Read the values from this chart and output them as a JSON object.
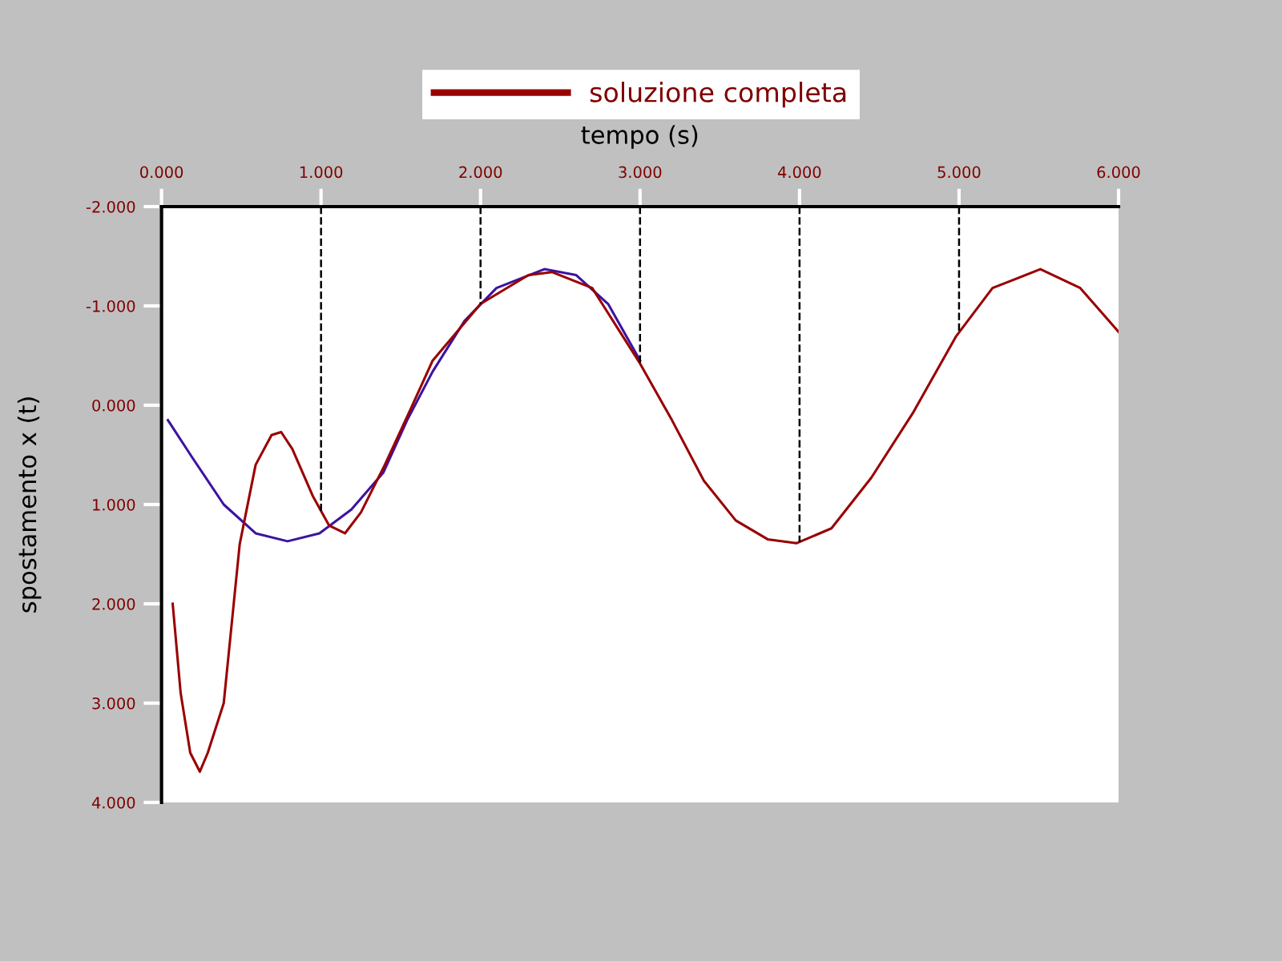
{
  "chart_data": {
    "type": "line",
    "xlabel": "tempo (s)",
    "ylabel": "spostamento x (t)",
    "legend": "top",
    "grid": false,
    "marker": "none",
    "line_style": "solid",
    "xlim": [
      0,
      6
    ],
    "ylim": [
      4,
      -2
    ],
    "xticks": [
      {
        "value": 0,
        "label": "0.000"
      },
      {
        "value": 1,
        "label": "1.000"
      },
      {
        "value": 2,
        "label": "2.000"
      },
      {
        "value": 3,
        "label": "3.000"
      },
      {
        "value": 4,
        "label": "4.000"
      },
      {
        "value": 5,
        "label": "5.000"
      },
      {
        "value": 6,
        "label": "6.000"
      }
    ],
    "yticks": [
      {
        "value": -2,
        "label": "-2.000"
      },
      {
        "value": -1,
        "label": "-1.000"
      },
      {
        "value": 0,
        "label": "0.000"
      },
      {
        "value": 1,
        "label": "1.000"
      },
      {
        "value": 2,
        "label": "2.000"
      },
      {
        "value": 3,
        "label": "3.000"
      },
      {
        "value": 4,
        "label": "4.000"
      }
    ],
    "series": [
      {
        "color": "#3c14a0",
        "x": [
          0.04,
          0.19,
          0.39,
          0.59,
          0.79,
          0.99,
          1.19,
          1.39,
          1.54,
          1.7,
          1.9,
          2.1,
          2.4,
          2.6,
          2.8,
          3.0
        ],
        "values": [
          0.15,
          0.52,
          1.0,
          1.29,
          1.37,
          1.29,
          1.05,
          0.68,
          0.15,
          -0.34,
          -0.85,
          -1.18,
          -1.37,
          -1.31,
          -1.02,
          -0.45
        ]
      },
      {
        "name": "soluzione completa",
        "color": "#990000",
        "x": [
          0.07,
          0.12,
          0.18,
          0.24,
          0.29,
          0.39,
          0.49,
          0.59,
          0.69,
          0.75,
          0.82,
          0.95,
          1.05,
          1.15,
          1.25,
          1.4,
          1.55,
          1.7,
          2.0,
          2.3,
          2.45,
          2.7,
          3.0,
          3.2,
          3.4,
          3.6,
          3.8,
          3.98,
          4.2,
          4.45,
          4.71,
          4.98,
          5.21,
          5.51,
          5.76,
          6.0
        ],
        "values": [
          2.0,
          2.9,
          3.5,
          3.69,
          3.5,
          3.0,
          1.4,
          0.6,
          0.3,
          0.27,
          0.44,
          0.92,
          1.21,
          1.29,
          1.08,
          0.6,
          0.08,
          -0.45,
          -1.02,
          -1.31,
          -1.34,
          -1.18,
          -0.42,
          0.15,
          0.76,
          1.16,
          1.35,
          1.39,
          1.24,
          0.73,
          0.08,
          -0.69,
          -1.18,
          -1.37,
          -1.18,
          -0.74
        ]
      }
    ],
    "ref_lines": [
      {
        "axis": "x",
        "value": 1,
        "color": "#000000",
        "line_style": "dashed"
      },
      {
        "axis": "x",
        "value": 2,
        "color": "#000000",
        "line_style": "dashed"
      },
      {
        "axis": "x",
        "value": 3,
        "color": "#000000",
        "line_style": "dashed"
      },
      {
        "axis": "x",
        "value": 4,
        "color": "#000000",
        "line_style": "dashed"
      },
      {
        "axis": "x",
        "value": 5,
        "color": "#000000",
        "line_style": "dashed"
      }
    ]
  }
}
